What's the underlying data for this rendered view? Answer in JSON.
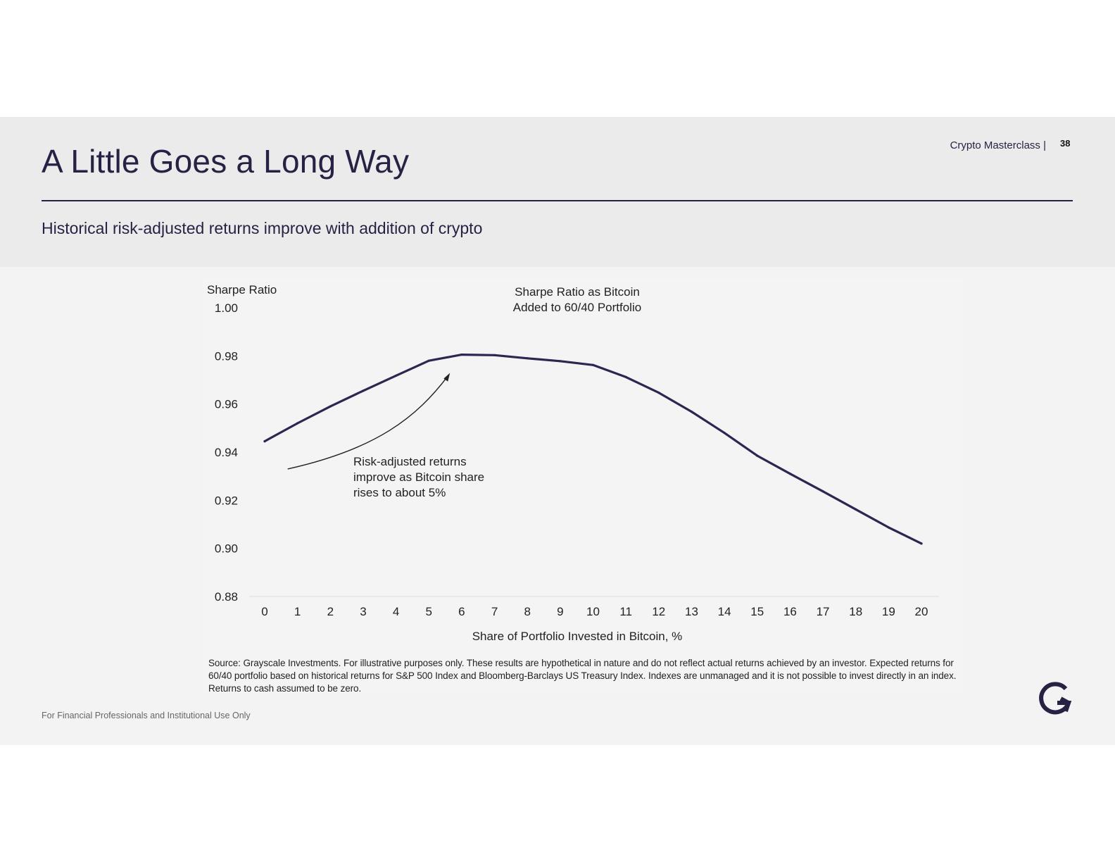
{
  "header": {
    "title": "A Little Goes a Long Way",
    "subtitle": "Historical risk-adjusted returns improve with addition of crypto",
    "deck_label": "Crypto Masterclass |",
    "page_number": "38"
  },
  "footer": {
    "disclaimer": "For Financial Professionals and Institutional Use Only",
    "source": "Source: Grayscale Investments. For illustrative purposes only. These results are hypothetical in nature and do not reflect actual returns achieved by an investor. Expected returns for 60/40 portfolio based on historical returns for S&P 500 Index and Bloomberg-Barclays US Treasury Index. Indexes are unmanaged and it is not possible to invest directly in an index. Returns to cash assumed to be zero."
  },
  "logo": {
    "name": "grayscale-g-logo",
    "color": "#262244"
  },
  "colors": {
    "line": "#2b2750",
    "text": "#262244",
    "band": "#ebebeb",
    "panel": "#f3f3f3"
  },
  "chart_data": {
    "type": "line",
    "title_lines": [
      "Sharpe Ratio as Bitcoin",
      "Added to 60/40 Portfolio"
    ],
    "xlabel": "Share of Portfolio Invested in Bitcoin, %",
    "ylabel": "Sharpe Ratio",
    "x": [
      0,
      1,
      2,
      3,
      4,
      5,
      6,
      7,
      8,
      9,
      10,
      11,
      12,
      13,
      14,
      15,
      16,
      17,
      18,
      19,
      20
    ],
    "series": [
      {
        "name": "Sharpe Ratio",
        "values": [
          0.9445,
          0.952,
          0.959,
          0.9655,
          0.9718,
          0.978,
          0.9805,
          0.9803,
          0.979,
          0.9778,
          0.9762,
          0.9712,
          0.9647,
          0.9568,
          0.948,
          0.9385,
          0.931,
          0.9237,
          0.9162,
          0.9087,
          0.902
        ]
      }
    ],
    "ylim": [
      0.88,
      1.0
    ],
    "y_ticks": [
      "0.88",
      "0.90",
      "0.92",
      "0.94",
      "0.96",
      "0.98",
      "1.00"
    ],
    "x_ticks": [
      "0",
      "1",
      "2",
      "3",
      "4",
      "5",
      "6",
      "7",
      "8",
      "9",
      "10",
      "11",
      "12",
      "13",
      "14",
      "15",
      "16",
      "17",
      "18",
      "19",
      "20"
    ],
    "annotation": {
      "lines": [
        "Risk-adjusted returns",
        "improve as Bitcoin share",
        "rises to about 5%"
      ],
      "arrow_from": [
        0.7,
        0.933
      ],
      "arrow_to": [
        5.6,
        0.972
      ]
    },
    "grid": false,
    "legend": "none"
  }
}
